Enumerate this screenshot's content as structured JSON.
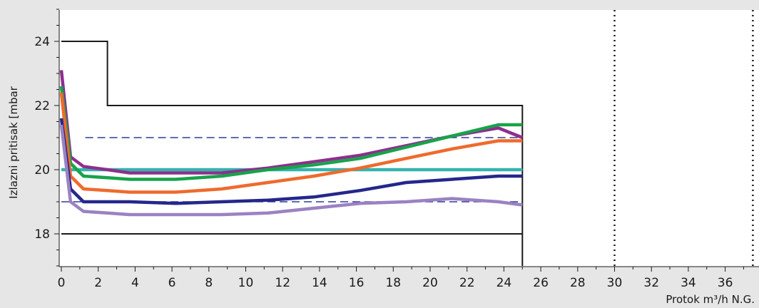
{
  "chart_data": {
    "type": "line",
    "title": "",
    "ylabel": "Izlazni pritisak [mbar",
    "xlabel": "Protok m³/h N.G.",
    "xlim": [
      0,
      37.5
    ],
    "ylim": [
      17,
      25
    ],
    "x_ticks": [
      0,
      2,
      4,
      6,
      8,
      10,
      12,
      14,
      16,
      18,
      20,
      22,
      24,
      26,
      28,
      30,
      32,
      34,
      36
    ],
    "y_ticks": [
      18,
      20,
      22,
      24
    ],
    "grid": false,
    "colors": {
      "background": "#e6e6e6",
      "plot_background": "#ffffff",
      "axis": "#1a1a1a"
    },
    "limit_lines": [
      {
        "style": "solid",
        "color": "#1a1a1a",
        "x": [
          0,
          2.5,
          2.5,
          25,
          25
        ],
        "y": [
          24,
          24,
          22,
          22,
          17
        ]
      },
      {
        "style": "solid",
        "color": "#1a1a1a",
        "x": [
          0,
          25
        ],
        "y": [
          18,
          18
        ]
      },
      {
        "style": "dashed",
        "color": "#2b3b99",
        "x": [
          1.3,
          25
        ],
        "y": [
          21,
          21
        ]
      },
      {
        "style": "dashed",
        "color": "#2b3b99",
        "x": [
          0,
          25
        ],
        "y": [
          19,
          19
        ]
      },
      {
        "style": "dotted",
        "color": "#1a1a1a",
        "x": [
          30,
          30
        ],
        "y": [
          17,
          25
        ]
      },
      {
        "style": "dotted",
        "color": "#1a1a1a",
        "x": [
          37.5,
          37.5
        ],
        "y": [
          17,
          25
        ]
      }
    ],
    "series": [
      {
        "color": "#34b3ae",
        "x": [
          0,
          25
        ],
        "y": [
          20,
          20
        ]
      },
      {
        "color": "#8d2f8d",
        "x": [
          0,
          0.5,
          1.2,
          2.5,
          3.7,
          6.2,
          8.7,
          11.2,
          13.7,
          16.2,
          18.7,
          21.2,
          23.7,
          25
        ],
        "y": [
          23.1,
          20.4,
          20.1,
          20.0,
          19.9,
          19.9,
          19.9,
          20.05,
          20.25,
          20.45,
          20.75,
          21.05,
          21.3,
          21.0
        ]
      },
      {
        "color": "#18a34a",
        "x": [
          0,
          0.5,
          1.2,
          2.5,
          3.7,
          6.2,
          8.7,
          11.2,
          13.7,
          16.2,
          18.7,
          21.2,
          23.7,
          25
        ],
        "y": [
          22.6,
          20.2,
          19.8,
          19.75,
          19.7,
          19.7,
          19.8,
          20.0,
          20.15,
          20.35,
          20.7,
          21.05,
          21.4,
          21.4
        ]
      },
      {
        "color": "#ef6a2d",
        "x": [
          0,
          0.5,
          1.2,
          2.5,
          3.7,
          6.2,
          8.7,
          11.2,
          13.7,
          16.2,
          18.7,
          21.2,
          23.7,
          25
        ],
        "y": [
          22.4,
          19.8,
          19.4,
          19.35,
          19.3,
          19.3,
          19.4,
          19.6,
          19.8,
          20.05,
          20.35,
          20.65,
          20.9,
          20.9
        ]
      },
      {
        "color": "#25278c",
        "x": [
          0,
          0.5,
          1.2,
          2.5,
          3.7,
          6.2,
          8.7,
          11.2,
          13.7,
          16.2,
          18.7,
          21.2,
          23.7,
          25
        ],
        "y": [
          21.6,
          19.4,
          19.0,
          19.0,
          19.0,
          18.95,
          19.0,
          19.05,
          19.15,
          19.35,
          19.6,
          19.7,
          19.8,
          19.8
        ]
      },
      {
        "color": "#9b82c2",
        "x": [
          0,
          0.5,
          1.2,
          2.5,
          3.7,
          6.2,
          8.7,
          11.2,
          13.7,
          16.2,
          18.7,
          21.2,
          23.7,
          25
        ],
        "y": [
          21.4,
          19.0,
          18.7,
          18.65,
          18.6,
          18.6,
          18.6,
          18.65,
          18.8,
          18.95,
          19.0,
          19.1,
          19.0,
          18.9
        ]
      }
    ]
  }
}
